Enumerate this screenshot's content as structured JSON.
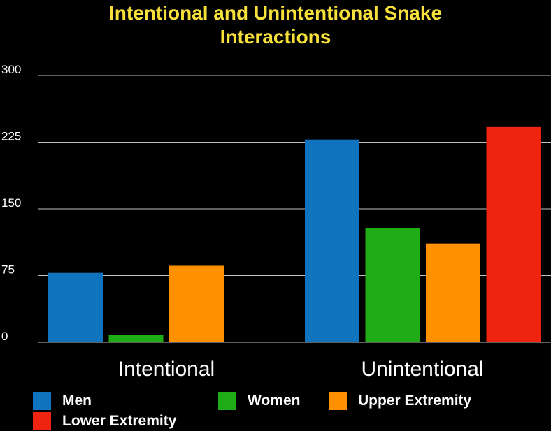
{
  "chart_data": {
    "type": "bar",
    "title_lines": [
      "Intentional and Unintentional Snake",
      "Interactions"
    ],
    "categories": [
      "Intentional",
      "Unintentional"
    ],
    "series": [
      {
        "name": "Men",
        "color": "#0f73bd",
        "values": [
          78,
          228
        ]
      },
      {
        "name": "Women",
        "color": "#1fac16",
        "values": [
          8,
          128
        ]
      },
      {
        "name": "Upper Extremity",
        "color": "#ff9100",
        "values": [
          86,
          111
        ]
      },
      {
        "name": "Lower Extremity",
        "color": "#ee2411",
        "values": [
          null,
          242
        ]
      }
    ],
    "ylim": [
      0,
      300
    ],
    "yticks": [
      "0",
      "75",
      "150",
      "225",
      "300"
    ],
    "xlabel": "",
    "ylabel": "",
    "grid": true,
    "legend_position": "bottom"
  },
  "colors": {
    "background": "#000000",
    "title": "#f7e03a",
    "text": "#ffffff",
    "grid": "#bfbfbf"
  }
}
